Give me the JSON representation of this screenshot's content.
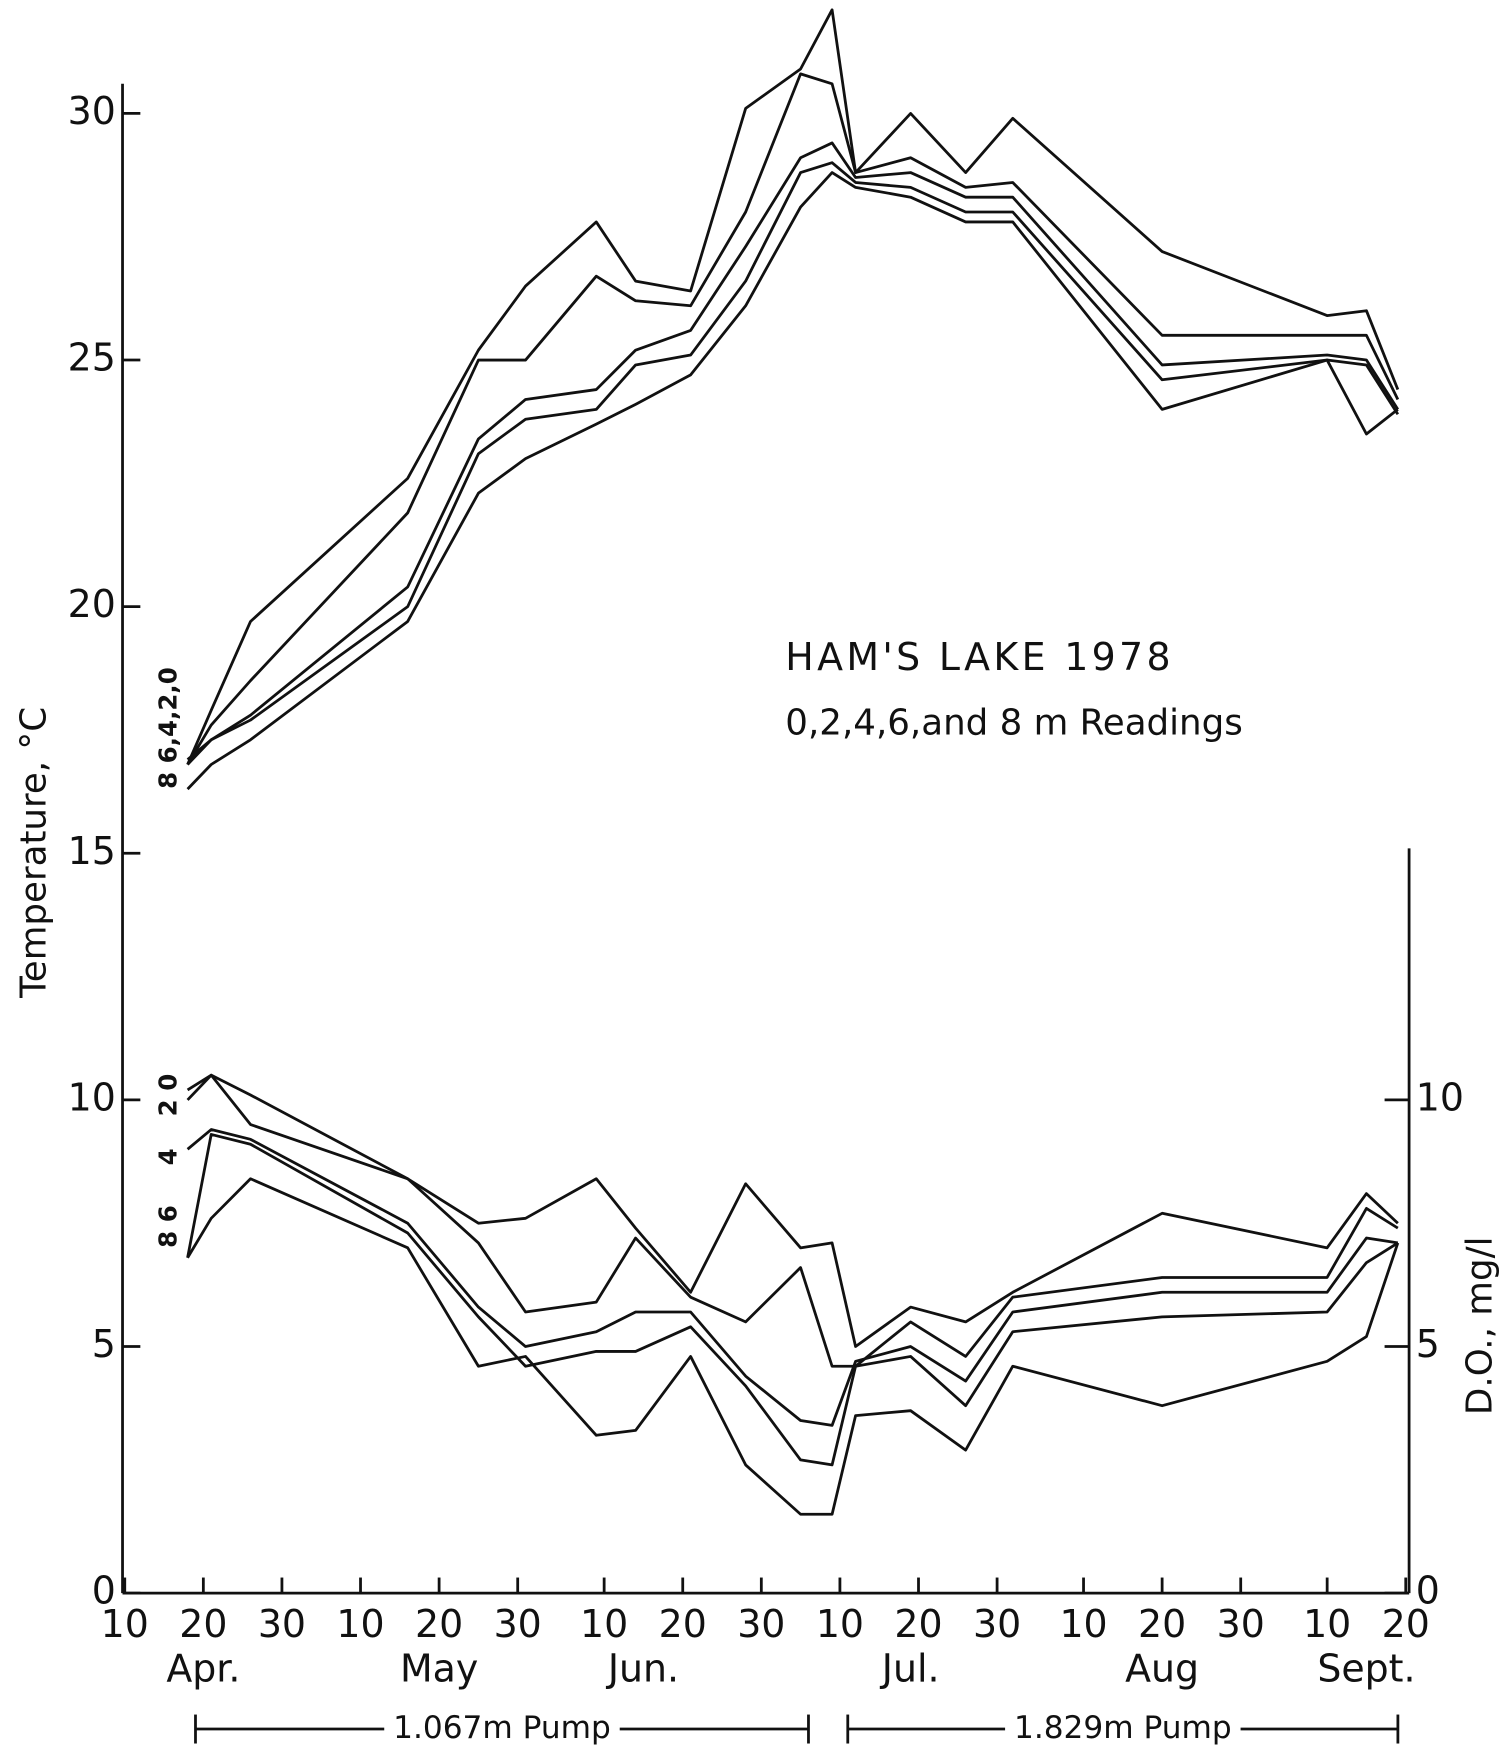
{
  "chart_data": {
    "type": "line",
    "title": "HAM'S LAKE 1978",
    "subtitle": "0,2,4,6,and 8 m Readings",
    "y_label": "Temperature, °C",
    "y2_label": "D.O., mg/l",
    "x": [
      "1978-04-18",
      "1978-04-21",
      "1978-04-26",
      "1978-05-16",
      "1978-05-25",
      "1978-05-31",
      "1978-06-09",
      "1978-06-14",
      "1978-06-21",
      "1978-06-28",
      "1978-07-05",
      "1978-07-09",
      "1978-07-12",
      "1978-07-19",
      "1978-07-26",
      "1978-08-01",
      "1978-08-20",
      "1978-09-10",
      "1978-09-15",
      "1978-09-19"
    ],
    "xlim": [
      "1978-04-10",
      "1978-09-20"
    ],
    "xticks": [
      {
        "value": "1978-04-10",
        "label": "10"
      },
      {
        "value": "1978-04-20",
        "label": "20"
      },
      {
        "value": "1978-04-30",
        "label": "30"
      },
      {
        "value": "1978-05-10",
        "label": "10"
      },
      {
        "value": "1978-05-20",
        "label": "20"
      },
      {
        "value": "1978-05-30",
        "label": "30"
      },
      {
        "value": "1978-06-10",
        "label": "10"
      },
      {
        "value": "1978-06-20",
        "label": "20"
      },
      {
        "value": "1978-06-30",
        "label": "30"
      },
      {
        "value": "1978-07-10",
        "label": "10"
      },
      {
        "value": "1978-07-20",
        "label": "20"
      },
      {
        "value": "1978-07-30",
        "label": "30"
      },
      {
        "value": "1978-08-10",
        "label": "10"
      },
      {
        "value": "1978-08-20",
        "label": "20"
      },
      {
        "value": "1978-08-30",
        "label": "30"
      },
      {
        "value": "1978-09-10",
        "label": "10"
      },
      {
        "value": "1978-09-20",
        "label": "20"
      }
    ],
    "month_labels": [
      {
        "label": "Apr.",
        "x": "1978-04-20"
      },
      {
        "label": "May",
        "x": "1978-05-20"
      },
      {
        "label": "Jun.",
        "x": "1978-06-15"
      },
      {
        "label": "Jul.",
        "x": "1978-07-19"
      },
      {
        "label": "Aug",
        "x": "1978-08-20"
      },
      {
        "label": "Sept.",
        "x": "1978-09-15"
      }
    ],
    "ylim": [
      0,
      30.6
    ],
    "yticks": [
      0,
      5,
      10,
      15,
      20,
      25,
      30
    ],
    "y2lim": [
      0,
      15.1
    ],
    "y2ticks": [
      0,
      5,
      10
    ],
    "pumps": [
      {
        "label": "1.067m Pump",
        "start": "1978-04-19",
        "end": "1978-07-06"
      },
      {
        "label": "1.829m Pump",
        "start": "1978-07-11",
        "end": "1978-09-19"
      }
    ],
    "line_labels": [
      "8 6,4,2,0",
      "2 0",
      "4",
      "8 6"
    ],
    "series": [
      {
        "name": "0",
        "color": "#111111",
        "values": [
          16.8,
          17.9,
          19.7,
          22.6,
          25.2,
          26.5,
          27.8,
          26.6,
          26.4,
          30.1,
          30.9,
          32.1,
          28.8,
          30.0,
          28.8,
          29.9,
          27.2,
          25.9,
          26.0,
          24.4
        ]
      },
      {
        "name": "2",
        "color": "#111111",
        "values": [
          16.8,
          17.6,
          18.5,
          21.9,
          25.0,
          25.0,
          26.7,
          26.2,
          26.1,
          28.0,
          30.8,
          30.6,
          28.8,
          29.1,
          28.5,
          28.6,
          25.5,
          25.5,
          25.5,
          24.2
        ]
      },
      {
        "name": "4",
        "color": "#111111",
        "values": [
          16.8,
          17.3,
          17.8,
          20.4,
          23.4,
          24.2,
          24.4,
          25.2,
          25.6,
          27.3,
          29.1,
          29.4,
          28.7,
          28.8,
          28.3,
          28.3,
          24.9,
          25.1,
          25.0,
          24.0
        ]
      },
      {
        "name": "6",
        "color": "#111111",
        "values": [
          16.9,
          17.3,
          17.7,
          20.0,
          23.1,
          23.8,
          24.0,
          24.9,
          25.1,
          26.6,
          28.8,
          29.0,
          28.6,
          28.5,
          28.0,
          28.0,
          24.6,
          25.0,
          24.9,
          23.9
        ]
      },
      {
        "name": "8",
        "color": "#111111",
        "values": [
          16.3,
          16.8,
          17.3,
          19.7,
          22.3,
          23.0,
          23.7,
          24.1,
          24.7,
          26.1,
          28.1,
          28.8,
          28.5,
          28.3,
          27.8,
          27.8,
          24.0,
          25.0,
          23.5,
          24.0
        ]
      },
      {
        "name": "0",
        "color": "#111111",
        "axis": "y2",
        "values": [
          10.2,
          10.5,
          10.1,
          8.4,
          7.5,
          7.6,
          8.4,
          7.4,
          6.1,
          8.3,
          7.0,
          7.1,
          5.0,
          5.8,
          5.5,
          6.1,
          7.7,
          7.0,
          8.1,
          7.5
        ]
      },
      {
        "name": "2",
        "color": "#111111",
        "axis": "y2",
        "values": [
          10.0,
          10.5,
          9.5,
          8.4,
          7.1,
          5.7,
          5.9,
          7.2,
          6.0,
          5.5,
          6.6,
          4.6,
          4.6,
          5.5,
          4.8,
          6.0,
          6.4,
          6.4,
          7.8,
          7.4
        ]
      },
      {
        "name": "4",
        "color": "#111111",
        "axis": "y2",
        "values": [
          9.0,
          9.4,
          9.2,
          7.5,
          5.8,
          5.0,
          5.3,
          5.7,
          5.7,
          4.4,
          3.5,
          3.4,
          4.7,
          5.0,
          4.3,
          5.7,
          6.1,
          6.1,
          7.2,
          7.1
        ]
      },
      {
        "name": "6",
        "color": "#111111",
        "axis": "y2",
        "values": [
          6.8,
          9.3,
          9.1,
          7.3,
          5.6,
          4.6,
          4.9,
          4.9,
          5.4,
          4.2,
          2.7,
          2.6,
          4.6,
          4.8,
          3.8,
          5.3,
          5.6,
          5.7,
          6.7,
          7.1
        ]
      },
      {
        "name": "8",
        "color": "#111111",
        "axis": "y2",
        "values": [
          6.8,
          7.6,
          8.4,
          7.0,
          4.6,
          4.8,
          3.2,
          3.3,
          4.8,
          2.6,
          1.6,
          1.6,
          3.6,
          3.7,
          2.9,
          4.6,
          3.8,
          4.7,
          5.2,
          7.1
        ]
      }
    ]
  }
}
